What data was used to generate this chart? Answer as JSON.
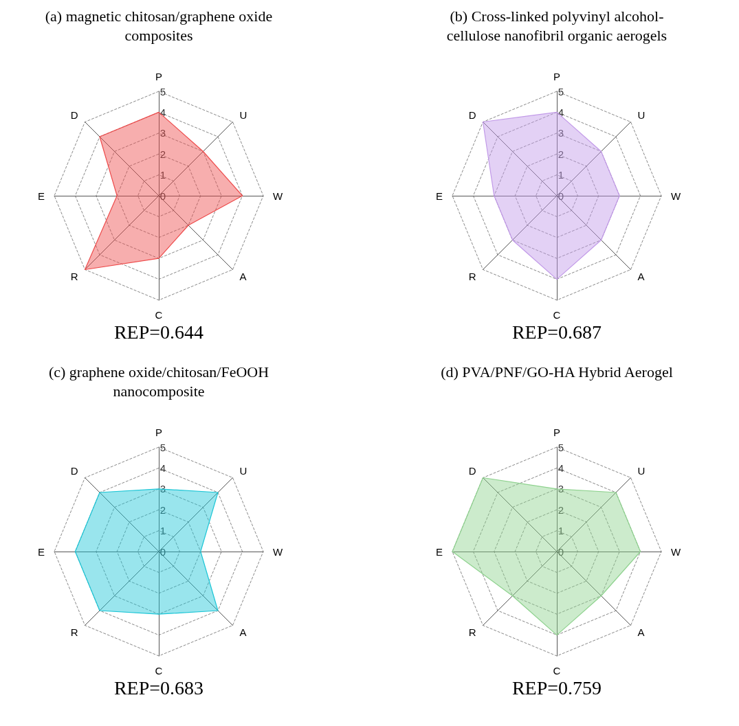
{
  "chart_data": [
    {
      "type": "radar",
      "title": "(a) magnetic chitosan/graphene oxide composites",
      "annotations": [
        "REP=0.644"
      ],
      "categories": [
        "P",
        "U",
        "W",
        "A",
        "C",
        "R",
        "E",
        "D"
      ],
      "ylim": [
        0,
        5
      ],
      "yticks": [
        0,
        1,
        2,
        3,
        4,
        5
      ],
      "grid": true,
      "marker": "none",
      "line_style": "solid",
      "series": [
        {
          "color": "#ee4b4b",
          "values": [
            4,
            3,
            4,
            2,
            3,
            5,
            2,
            4
          ]
        }
      ]
    },
    {
      "type": "radar",
      "title": "(b) Cross-linked polyvinyl alcohol-cellulose nanofibril organic aerogels",
      "annotations": [
        "REP=0.687"
      ],
      "categories": [
        "P",
        "U",
        "W",
        "A",
        "C",
        "R",
        "E",
        "D"
      ],
      "ylim": [
        0,
        5
      ],
      "yticks": [
        0,
        1,
        2,
        3,
        4,
        5
      ],
      "grid": true,
      "marker": "none",
      "line_style": "solid",
      "series": [
        {
          "color": "#c29ae8",
          "values": [
            4,
            3,
            3,
            3,
            4,
            3,
            3,
            5
          ]
        }
      ]
    },
    {
      "type": "radar",
      "title": "(c) graphene oxide/chitosan/FeOOH nanocomposite",
      "annotations": [
        "REP=0.683"
      ],
      "categories": [
        "P",
        "U",
        "W",
        "A",
        "C",
        "R",
        "E",
        "D"
      ],
      "ylim": [
        0,
        5
      ],
      "yticks": [
        0,
        1,
        2,
        3,
        4,
        5
      ],
      "grid": true,
      "marker": "none",
      "line_style": "solid",
      "series": [
        {
          "color": "#1cc6d6",
          "values": [
            3,
            4,
            2,
            4,
            3,
            4,
            4,
            4
          ]
        }
      ]
    },
    {
      "type": "radar",
      "title": "(d) PVA/PNF/GO-HA Hybrid Aerogel",
      "annotations": [
        "REP=0.759"
      ],
      "categories": [
        "P",
        "U",
        "W",
        "A",
        "C",
        "R",
        "E",
        "D"
      ],
      "ylim": [
        0,
        5
      ],
      "yticks": [
        0,
        1,
        2,
        3,
        4,
        5
      ],
      "grid": true,
      "marker": "none",
      "line_style": "solid",
      "series": [
        {
          "color": "#8fd28f",
          "values": [
            3,
            4,
            4,
            3,
            4,
            3,
            5,
            5
          ]
        }
      ]
    }
  ]
}
